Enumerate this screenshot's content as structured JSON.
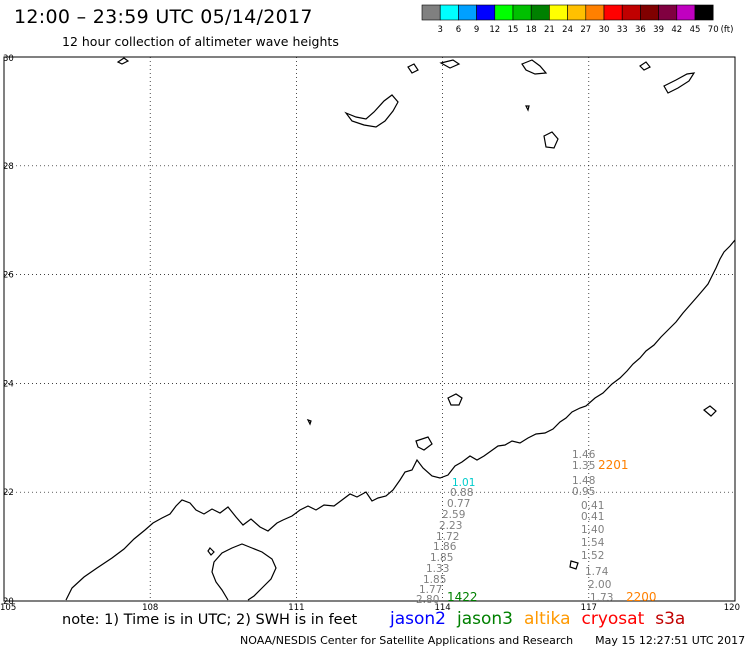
{
  "header": {
    "title": "12:00 – 23:59 UTC 05/14/2017",
    "subtitle": "12 hour collection of altimeter wave heights"
  },
  "scale": {
    "unit": "(ft)",
    "bins": [
      {
        "label": "3",
        "color": "#808080"
      },
      {
        "label": "6",
        "color": "#00ffff"
      },
      {
        "label": "9",
        "color": "#00a0ff"
      },
      {
        "label": "12",
        "color": "#0000ff"
      },
      {
        "label": "15",
        "color": "#00ff00"
      },
      {
        "label": "18",
        "color": "#00c000"
      },
      {
        "label": "21",
        "color": "#008000"
      },
      {
        "label": "24",
        "color": "#ffff00"
      },
      {
        "label": "27",
        "color": "#ffc000"
      },
      {
        "label": "30",
        "color": "#ff8000"
      },
      {
        "label": "33",
        "color": "#ff0000"
      },
      {
        "label": "36",
        "color": "#c00000"
      },
      {
        "label": "39",
        "color": "#800000"
      },
      {
        "label": "42",
        "color": "#800040"
      },
      {
        "label": "45",
        "color": "#c000c0"
      },
      {
        "label": "70",
        "color": "#000000"
      }
    ]
  },
  "map": {
    "lon_ticks": [
      "105",
      "108",
      "111",
      "114",
      "117",
      "120"
    ],
    "lat_ticks": [
      "20",
      "22",
      "24",
      "26",
      "28",
      "30"
    ],
    "tracks": [
      {
        "time": "1422",
        "time_color": "#008000",
        "value_color": "#808080",
        "time_pos": [
          447,
          601
        ],
        "values": [
          {
            "v": "1.01",
            "pos": [
              452,
              486
            ],
            "color": "#00cccc"
          },
          {
            "v": "0.88",
            "pos": [
              450,
              496
            ]
          },
          {
            "v": "0.77",
            "pos": [
              447,
              507
            ]
          },
          {
            "v": "2.59",
            "pos": [
              442,
              518
            ]
          },
          {
            "v": "2.23",
            "pos": [
              439,
              529
            ]
          },
          {
            "v": "1.72",
            "pos": [
              436,
              540
            ]
          },
          {
            "v": "1.86",
            "pos": [
              433,
              550
            ]
          },
          {
            "v": "1.85",
            "pos": [
              430,
              561
            ]
          },
          {
            "v": "1.33",
            "pos": [
              426,
              572
            ]
          },
          {
            "v": "1.85",
            "pos": [
              423,
              583
            ]
          },
          {
            "v": "1.77",
            "pos": [
              419,
              593
            ]
          },
          {
            "v": "2.80",
            "pos": [
              416,
              603
            ]
          }
        ]
      },
      {
        "time": "2201",
        "time_color": "#ff8000",
        "value_color": "#808080",
        "time_pos": [
          598,
          469
        ],
        "values": [
          {
            "v": "1.46",
            "pos": [
              572,
              458
            ]
          },
          {
            "v": "1.35",
            "pos": [
              572,
              469
            ]
          },
          {
            "v": "1.48",
            "pos": [
              572,
              484
            ]
          },
          {
            "v": "0.95",
            "pos": [
              572,
              495
            ]
          }
        ]
      },
      {
        "time": "2200",
        "time_color": "#ff8000",
        "value_color": "#808080",
        "time_pos": [
          626,
          601
        ],
        "values": [
          {
            "v": "0.41",
            "pos": [
              581,
              509
            ]
          },
          {
            "v": "0.41",
            "pos": [
              581,
              520
            ]
          },
          {
            "v": "1.40",
            "pos": [
              581,
              533
            ]
          },
          {
            "v": "1.54",
            "pos": [
              581,
              546
            ]
          },
          {
            "v": "1.52",
            "pos": [
              581,
              559
            ]
          },
          {
            "v": "1.74",
            "pos": [
              585,
              575
            ]
          },
          {
            "v": "2.00",
            "pos": [
              588,
              588
            ]
          },
          {
            "v": "1.73",
            "pos": [
              590,
              601
            ]
          }
        ]
      }
    ]
  },
  "footer": {
    "note": "note: 1) Time is in UTC; 2) SWH is in feet",
    "satellites": [
      {
        "name": "jason2",
        "color": "#0000ff"
      },
      {
        "name": "jason3",
        "color": "#008000"
      },
      {
        "name": "altika",
        "color": "#ff9900"
      },
      {
        "name": "cryosat",
        "color": "#ff0000"
      },
      {
        "name": "s3a",
        "color": "#c00000"
      }
    ],
    "credit": "NOAA/NESDIS Center for Satellite Applications and Research",
    "timestamp": "May 15 12:27:51 UTC 2017"
  }
}
